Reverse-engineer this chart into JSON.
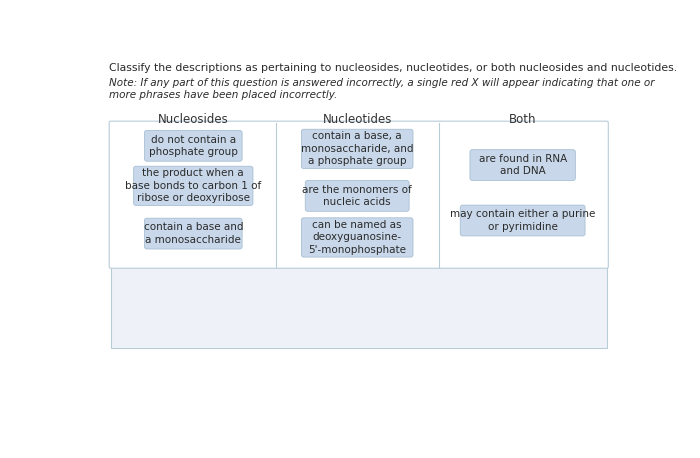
{
  "title_line1": "Classify the descriptions as pertaining to nucleosides, nucleotides, or both nucleosides and nucleotides.",
  "note_line": "Note: If any part of this question is answered incorrectly, a single red X will appear indicating that one or\nmore phrases have been placed incorrectly.",
  "col_headers": [
    "Nucleosides",
    "Nucleotides",
    "Both"
  ],
  "nucleosides_items": [
    "do not contain a\nphosphate group",
    "the product when a\nbase bonds to carbon 1 of\nribose or deoxyribose",
    "contain a base and\na monosaccharide"
  ],
  "nucleotides_items": [
    "contain a base, a\nmonosaccharide, and\na phosphate group",
    "are the monomers of\nnucleic acids",
    "can be named as\ndeoxyguanosine-\n5'-monophosphate"
  ],
  "both_items": [
    "are found in RNA\nand DNA",
    "may contain either a purine\nor pyrimidine"
  ],
  "bg_color": "#ffffff",
  "bottom_rect_color": "#eef2f8",
  "box_bg": "#c8d8ea",
  "box_border": "#a8c0d4",
  "panel_bg": "#ffffff",
  "panel_border": "#b8ccd8",
  "text_color": "#2a2a2a",
  "header_color": "#333333",
  "title_fontsize": 7.8,
  "note_fontsize": 7.5,
  "header_fontsize": 8.5,
  "item_fontsize": 7.5
}
